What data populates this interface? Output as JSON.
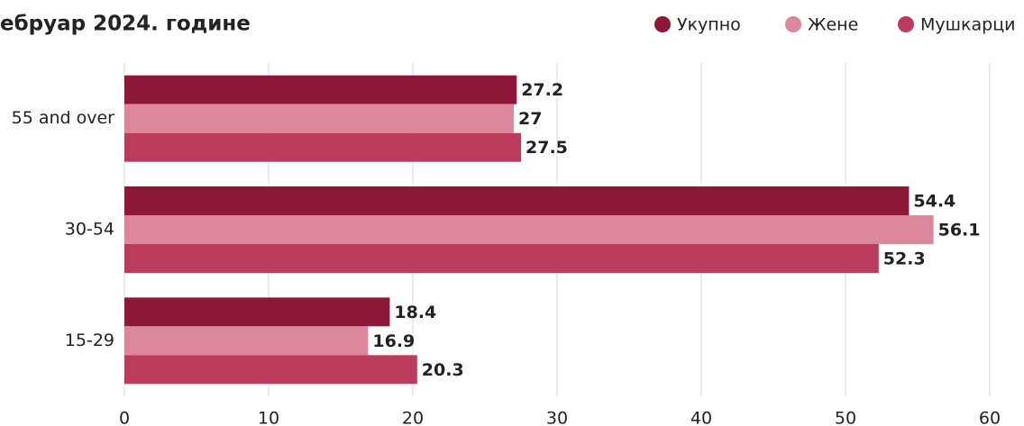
{
  "chart_data": {
    "type": "bar",
    "orientation": "horizontal",
    "title": "ебруар 2024. године",
    "categories": [
      "55 and over",
      "30-54",
      "15-29"
    ],
    "series": [
      {
        "name": "Укупно",
        "color": "#8e1838",
        "values": [
          27.2,
          54.4,
          18.4
        ]
      },
      {
        "name": "Жене",
        "color": "#dc879c",
        "values": [
          27,
          56.1,
          16.9
        ]
      },
      {
        "name": "Мушкарци",
        "color": "#bc3c5e",
        "values": [
          27.5,
          52.3,
          20.3
        ]
      }
    ],
    "xlim": [
      0,
      60
    ],
    "xticks": [
      0,
      10,
      20,
      30,
      40,
      50,
      60
    ],
    "grid": true,
    "legend": "top-right"
  }
}
